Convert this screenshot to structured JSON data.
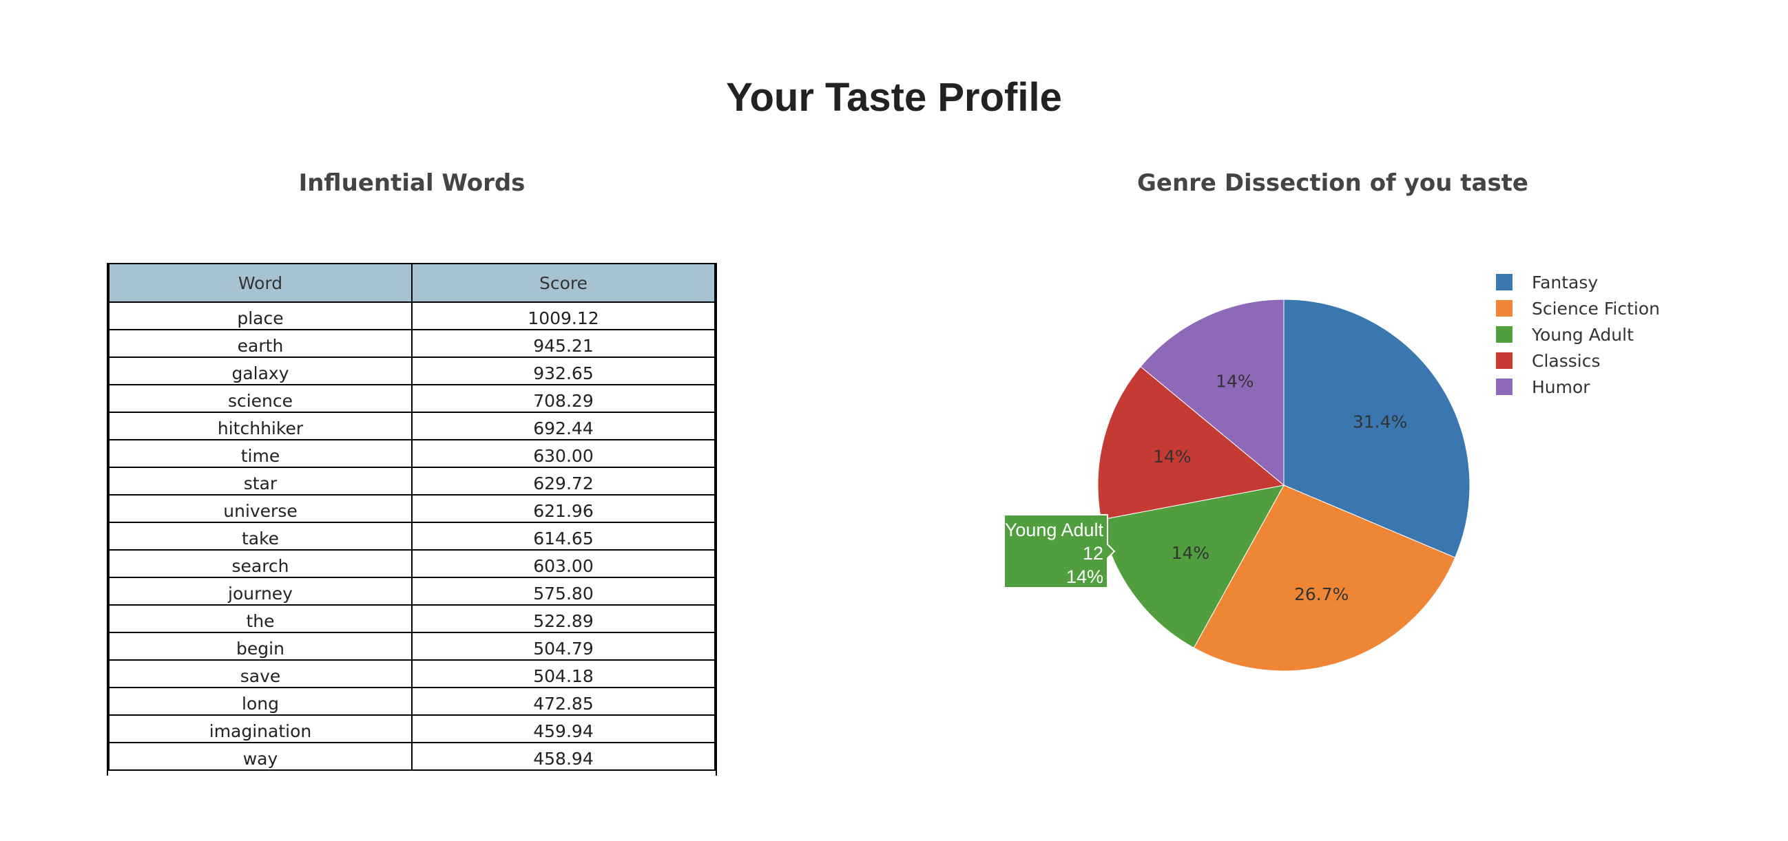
{
  "page": {
    "title": "Your Taste Profile"
  },
  "words": {
    "title": "Influential Words",
    "columns": [
      "Word",
      "Score"
    ],
    "rows": [
      {
        "word": "place",
        "score": "1009.12"
      },
      {
        "word": "earth",
        "score": "945.21"
      },
      {
        "word": "galaxy",
        "score": "932.65"
      },
      {
        "word": "science",
        "score": "708.29"
      },
      {
        "word": "hitchhiker",
        "score": "692.44"
      },
      {
        "word": "time",
        "score": "630.00"
      },
      {
        "word": "star",
        "score": "629.72"
      },
      {
        "word": "universe",
        "score": "621.96"
      },
      {
        "word": "take",
        "score": "614.65"
      },
      {
        "word": "search",
        "score": "603.00"
      },
      {
        "word": "journey",
        "score": "575.80"
      },
      {
        "word": "the",
        "score": "522.89"
      },
      {
        "word": "begin",
        "score": "504.79"
      },
      {
        "word": "save",
        "score": "504.18"
      },
      {
        "word": "long",
        "score": "472.85"
      },
      {
        "word": "imagination",
        "score": "459.94"
      },
      {
        "word": "way",
        "score": "458.94"
      }
    ]
  },
  "chart_data": {
    "type": "pie",
    "title": "Genre Dissection of you taste",
    "slices": [
      {
        "label": "Fantasy",
        "percent": 31.4,
        "text": "31.4%",
        "color": "#3a76af"
      },
      {
        "label": "Science Fiction",
        "percent": 26.7,
        "text": "26.7%",
        "color": "#ef8636"
      },
      {
        "label": "Young Adult",
        "percent": 14.0,
        "text": "14%",
        "color": "#519e3e",
        "count": "12"
      },
      {
        "label": "Classics",
        "percent": 14.0,
        "text": "14%",
        "color": "#c53a32"
      },
      {
        "label": "Humor",
        "percent": 14.0,
        "text": "14%",
        "color": "#8d69b8"
      }
    ],
    "legend_placement": "top-right",
    "hover": {
      "label": "Young Adult",
      "count": "12",
      "percent": "14%"
    }
  }
}
